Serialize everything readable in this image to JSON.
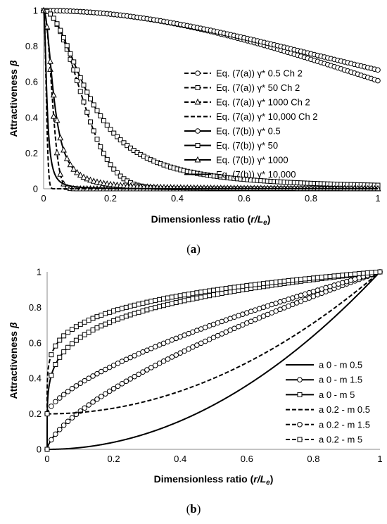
{
  "chart_data": [
    {
      "type": "line",
      "panel_label": "(a)",
      "xlabel": "Dimensionless ratio (r/Le)",
      "ylabel": "Attractiveness β",
      "xlim": [
        0,
        1
      ],
      "ylim": [
        0,
        1
      ],
      "xticks": [
        "0",
        "0.2",
        "0.4",
        "0.6",
        "0.8",
        "1"
      ],
      "yticks": [
        "0",
        "0.2",
        "0.4",
        "0.6",
        "0.8",
        "1"
      ],
      "grid": false,
      "legend_position": "right",
      "series": [
        {
          "name": "Eq. (7(a)) γ* 0.5 Ch 2",
          "style": "dashed",
          "marker": "circle",
          "gamma": 0.5,
          "model": "gauss"
        },
        {
          "name": "Eq. (7(a)) γ* 50 Ch 2",
          "style": "dashed",
          "marker": "square",
          "gamma": 50,
          "model": "gauss"
        },
        {
          "name": "Eq. (7(a)) γ* 1000 Ch 2",
          "style": "dashed",
          "marker": "triangle",
          "gamma": 1000,
          "model": "gauss"
        },
        {
          "name": "Eq. (7(a)) γ* 10,000 Ch 2",
          "style": "dashed",
          "marker": "none",
          "gamma": 10000,
          "model": "gauss"
        },
        {
          "name": "Eq. (7(b)) γ* 0.5",
          "style": "solid",
          "marker": "circle",
          "gamma": 0.5,
          "model": "rational"
        },
        {
          "name": "Eq. (7(b)) γ* 50",
          "style": "solid",
          "marker": "square",
          "gamma": 50,
          "model": "rational"
        },
        {
          "name": "Eq. (7(b)) γ* 1000",
          "style": "solid",
          "marker": "triangle",
          "gamma": 1000,
          "model": "rational"
        },
        {
          "name": "Eq. (7(b)) γ* 10,000",
          "style": "solid",
          "marker": "none",
          "gamma": 10000,
          "model": "rational"
        }
      ]
    },
    {
      "type": "line",
      "panel_label": "(b)",
      "xlabel": "Dimensionless ratio (r/Le)",
      "ylabel": "Attractiveness β",
      "xlim": [
        0,
        1
      ],
      "ylim": [
        0,
        1
      ],
      "xticks": [
        "0",
        "0.2",
        "0.4",
        "0.6",
        "0.8",
        "1"
      ],
      "yticks": [
        "0",
        "0.2",
        "0.4",
        "0.6",
        "0.8",
        "1"
      ],
      "grid": false,
      "legend_position": "right",
      "series": [
        {
          "name": "a 0 - m 0.5",
          "style": "solid",
          "marker": "none",
          "a": 0,
          "m": 0.5
        },
        {
          "name": "a 0 - m 1.5",
          "style": "solid",
          "marker": "circle",
          "a": 0,
          "m": 1.5
        },
        {
          "name": "a 0 - m 5",
          "style": "solid",
          "marker": "square",
          "a": 0,
          "m": 5
        },
        {
          "name": "a 0.2 - m 0.5",
          "style": "dashed",
          "marker": "none",
          "a": 0.2,
          "m": 0.5
        },
        {
          "name": "a 0.2 - m 1.5",
          "style": "dashed",
          "marker": "circle",
          "a": 0.2,
          "m": 1.5
        },
        {
          "name": "a 0.2 - m 5",
          "style": "dashed",
          "marker": "square",
          "a": 0.2,
          "m": 5
        }
      ]
    }
  ]
}
